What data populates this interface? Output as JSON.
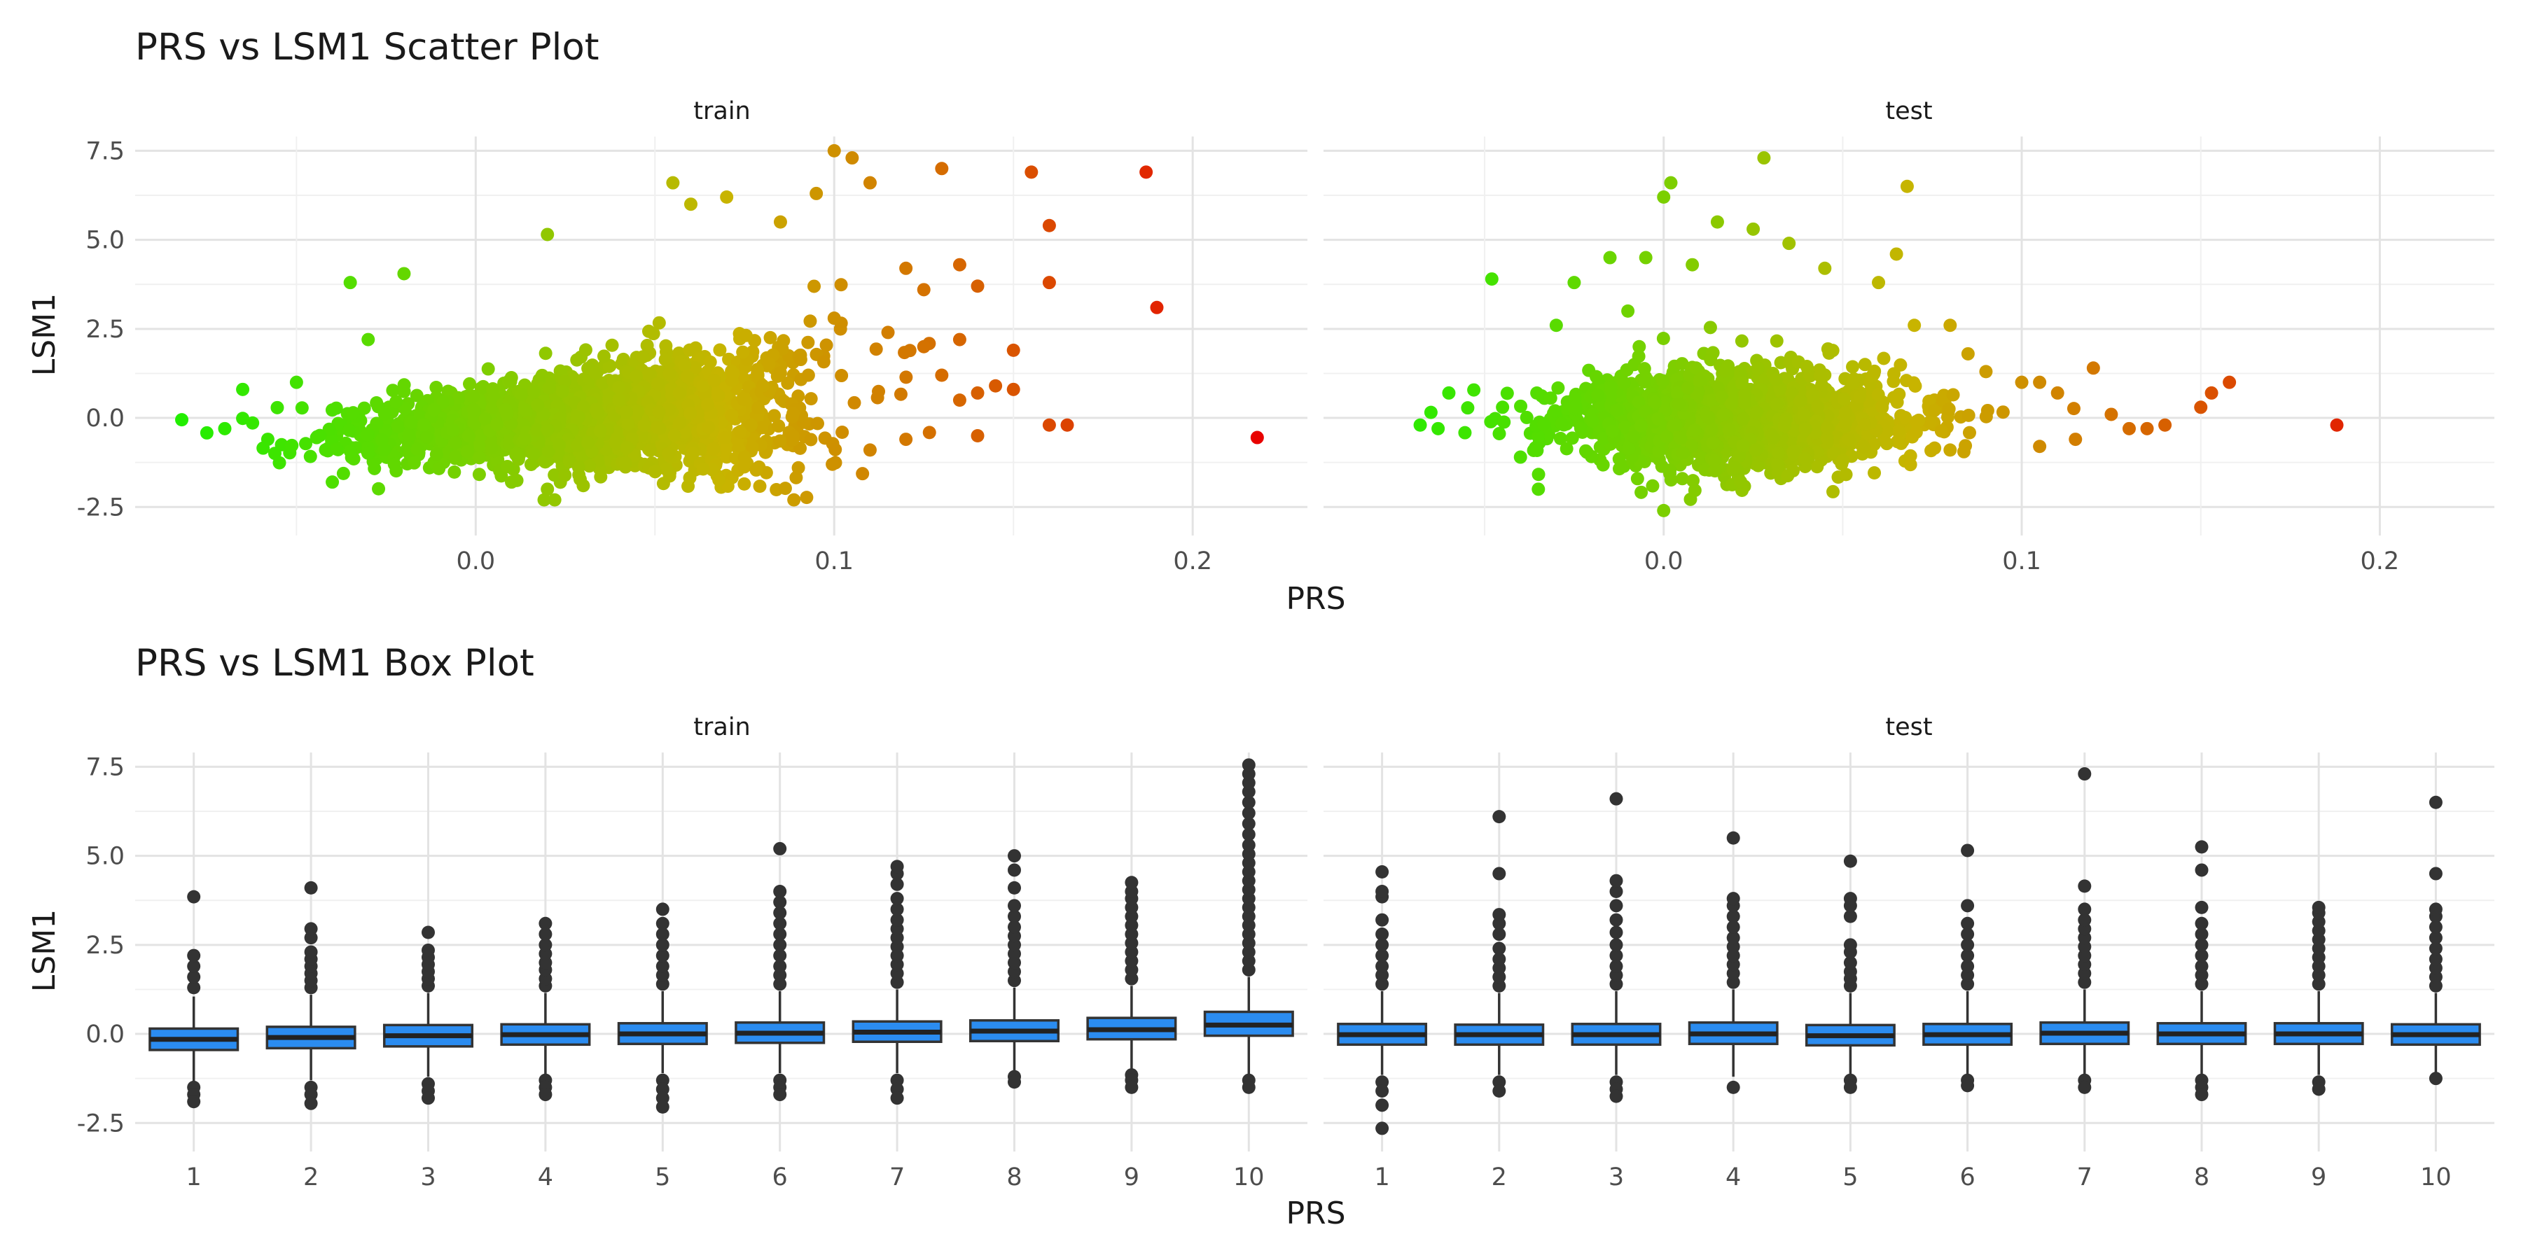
{
  "chart_data": [
    {
      "type": "scatter",
      "title": "PRS vs LSM1 Scatter Plot",
      "xlabel": "PRS",
      "ylabel": "LSM1",
      "xlim": [
        -0.095,
        0.232
      ],
      "ylim": [
        -3.3,
        7.9
      ],
      "x_ticks": [
        "0.0",
        "0.1",
        "0.2"
      ],
      "x_tick_values": [
        0.0,
        0.1,
        0.2
      ],
      "y_ticks": [
        "-2.5",
        "0.0",
        "2.5",
        "5.0",
        "7.5"
      ],
      "y_tick_values": [
        -2.5,
        0.0,
        2.5,
        5.0,
        7.5
      ],
      "grid": true,
      "color_scale": {
        "low": "#22ee00",
        "mid": "#c8b400",
        "high": "#e80000",
        "domain": [
          -0.08,
          0.22
        ]
      },
      "panels": [
        {
          "name": "train",
          "cloud": {
            "x_center": 0.03,
            "x_sd": 0.029,
            "y_sd": 0.85,
            "y_slope": 8.0,
            "count": 2400
          },
          "points": [
            [
              -0.082,
              -0.05
            ],
            [
              -0.075,
              -0.42
            ],
            [
              -0.07,
              -0.3
            ],
            [
              -0.065,
              0.8
            ],
            [
              -0.058,
              -0.6
            ],
            [
              -0.035,
              3.8
            ],
            [
              -0.03,
              2.2
            ],
            [
              -0.02,
              4.05
            ],
            [
              0.02,
              5.15
            ],
            [
              0.055,
              6.6
            ],
            [
              0.06,
              6.0
            ],
            [
              0.07,
              6.2
            ],
            [
              0.085,
              5.5
            ],
            [
              0.095,
              6.3
            ],
            [
              0.1,
              7.5
            ],
            [
              0.105,
              7.3
            ],
            [
              0.11,
              6.6
            ],
            [
              0.13,
              7.0
            ],
            [
              0.135,
              4.3
            ],
            [
              0.14,
              3.7
            ],
            [
              0.15,
              1.9
            ],
            [
              0.155,
              6.9
            ],
            [
              0.16,
              5.4
            ],
            [
              0.16,
              3.8
            ],
            [
              0.16,
              -0.2
            ],
            [
              0.165,
              -0.2
            ],
            [
              0.187,
              6.9
            ],
            [
              0.19,
              3.1
            ],
            [
              0.218,
              -0.55
            ],
            [
              0.12,
              4.2
            ],
            [
              0.125,
              3.6
            ],
            [
              0.145,
              0.9
            ],
            [
              0.14,
              0.7
            ],
            [
              0.15,
              0.8
            ],
            [
              0.13,
              1.2
            ],
            [
              0.135,
              0.5
            ],
            [
              0.14,
              -0.5
            ],
            [
              0.12,
              -0.6
            ],
            [
              0.11,
              -0.9
            ],
            [
              0.09,
              -1.4
            ],
            [
              0.1,
              2.8
            ],
            [
              0.115,
              2.4
            ],
            [
              0.125,
              2.0
            ],
            [
              0.135,
              2.2
            ],
            [
              0.02,
              -2.0
            ],
            [
              0.01,
              -1.8
            ],
            [
              -0.04,
              -1.8
            ],
            [
              0.05,
              -1.5
            ],
            [
              0.03,
              -1.9
            ],
            [
              -0.05,
              1.0
            ]
          ]
        },
        {
          "name": "test",
          "cloud": {
            "x_center": 0.02,
            "x_sd": 0.025,
            "y_sd": 0.78,
            "y_slope": 0.0,
            "count": 1500
          },
          "points": [
            [
              -0.068,
              -0.2
            ],
            [
              -0.063,
              -0.3
            ],
            [
              -0.06,
              0.7
            ],
            [
              -0.048,
              3.9
            ],
            [
              -0.045,
              0.3
            ],
            [
              -0.04,
              -1.1
            ],
            [
              -0.035,
              -2.0
            ],
            [
              -0.03,
              2.6
            ],
            [
              -0.025,
              3.8
            ],
            [
              -0.015,
              4.5
            ],
            [
              -0.01,
              3.0
            ],
            [
              0.0,
              -2.6
            ],
            [
              -0.005,
              4.5
            ],
            [
              0.0,
              6.2
            ],
            [
              0.002,
              6.6
            ],
            [
              0.008,
              4.3
            ],
            [
              0.015,
              5.5
            ],
            [
              0.025,
              5.3
            ],
            [
              0.028,
              7.3
            ],
            [
              0.035,
              4.9
            ],
            [
              0.045,
              4.2
            ],
            [
              0.06,
              3.8
            ],
            [
              0.065,
              4.6
            ],
            [
              0.068,
              6.5
            ],
            [
              0.07,
              2.6
            ],
            [
              0.08,
              2.6
            ],
            [
              0.1,
              1.0
            ],
            [
              0.105,
              1.0
            ],
            [
              0.11,
              0.7
            ],
            [
              0.12,
              1.4
            ],
            [
              0.125,
              0.1
            ],
            [
              0.13,
              -0.3
            ],
            [
              0.135,
              -0.3
            ],
            [
              0.14,
              -0.2
            ],
            [
              0.15,
              0.3
            ],
            [
              0.153,
              0.7
            ],
            [
              0.158,
              1.0
            ],
            [
              0.188,
              -0.2
            ],
            [
              0.115,
              -0.6
            ],
            [
              0.105,
              -0.8
            ],
            [
              0.09,
              1.3
            ],
            [
              0.085,
              1.8
            ],
            [
              0.08,
              -0.9
            ],
            [
              0.05,
              -1.2
            ],
            [
              0.02,
              -1.4
            ]
          ]
        }
      ]
    },
    {
      "type": "box",
      "title": "PRS vs LSM1 Box Plot",
      "xlabel": "PRS",
      "ylabel": "LSM1",
      "categories": [
        "1",
        "2",
        "3",
        "4",
        "5",
        "6",
        "7",
        "8",
        "9",
        "10"
      ],
      "ylim": [
        -3.3,
        7.9
      ],
      "y_ticks": [
        "-2.5",
        "0.0",
        "2.5",
        "5.0",
        "7.5"
      ],
      "y_tick_values": [
        -2.5,
        0.0,
        2.5,
        5.0,
        7.5
      ],
      "box_color": "#2b8cf0",
      "grid": true,
      "panels": [
        {
          "name": "train",
          "boxes": [
            {
              "q1": -0.45,
              "median": -0.15,
              "q3": 0.15,
              "whisker_low": -1.35,
              "whisker_high": 1.05,
              "outliers": [
                -1.5,
                -1.7,
                -1.9,
                1.3,
                1.6,
                1.9,
                2.2,
                3.85
              ]
            },
            {
              "q1": -0.4,
              "median": -0.1,
              "q3": 0.2,
              "whisker_low": -1.3,
              "whisker_high": 1.1,
              "outliers": [
                -1.5,
                -1.7,
                -1.95,
                1.3,
                1.5,
                1.7,
                1.9,
                2.1,
                2.3,
                2.7,
                2.95,
                4.1
              ]
            },
            {
              "q1": -0.35,
              "median": -0.05,
              "q3": 0.25,
              "whisker_low": -1.2,
              "whisker_high": 1.15,
              "outliers": [
                -1.4,
                -1.6,
                -1.8,
                1.35,
                1.55,
                1.75,
                1.95,
                2.15,
                2.35,
                2.85
              ]
            },
            {
              "q1": -0.3,
              "median": -0.02,
              "q3": 0.27,
              "whisker_low": -1.15,
              "whisker_high": 1.15,
              "outliers": [
                -1.3,
                -1.5,
                -1.7,
                1.35,
                1.55,
                1.8,
                2.0,
                2.25,
                2.5,
                2.8,
                3.1
              ]
            },
            {
              "q1": -0.28,
              "median": 0.0,
              "q3": 0.3,
              "whisker_low": -1.1,
              "whisker_high": 1.2,
              "outliers": [
                -1.3,
                -1.55,
                -1.8,
                -2.05,
                1.4,
                1.65,
                1.9,
                2.2,
                2.5,
                2.8,
                3.1,
                3.5
              ]
            },
            {
              "q1": -0.25,
              "median": 0.02,
              "q3": 0.32,
              "whisker_low": -1.1,
              "whisker_high": 1.2,
              "outliers": [
                -1.3,
                -1.5,
                -1.7,
                1.4,
                1.65,
                1.9,
                2.2,
                2.5,
                2.8,
                3.1,
                3.4,
                3.7,
                4.0,
                5.2
              ]
            },
            {
              "q1": -0.22,
              "median": 0.05,
              "q3": 0.35,
              "whisker_low": -1.1,
              "whisker_high": 1.25,
              "outliers": [
                -1.3,
                -1.55,
                -1.8,
                1.45,
                1.7,
                1.95,
                2.2,
                2.45,
                2.7,
                2.95,
                3.2,
                3.5,
                3.8,
                4.2,
                4.5,
                4.7
              ]
            },
            {
              "q1": -0.2,
              "median": 0.08,
              "q3": 0.38,
              "whisker_low": -1.05,
              "whisker_high": 1.3,
              "outliers": [
                -1.2,
                -1.35,
                1.5,
                1.75,
                2.0,
                2.25,
                2.5,
                2.75,
                3.0,
                3.3,
                3.6,
                4.1,
                4.6,
                5.0
              ]
            },
            {
              "q1": -0.15,
              "median": 0.12,
              "q3": 0.45,
              "whisker_low": -1.0,
              "whisker_high": 1.35,
              "outliers": [
                -1.15,
                -1.3,
                -1.5,
                1.55,
                1.8,
                2.05,
                2.3,
                2.55,
                2.8,
                3.05,
                3.3,
                3.55,
                3.8,
                4.0,
                4.25
              ]
            },
            {
              "q1": -0.05,
              "median": 0.25,
              "q3": 0.62,
              "whisker_low": -1.2,
              "whisker_high": 1.6,
              "outliers": [
                -1.3,
                -1.5,
                1.8,
                2.05,
                2.3,
                2.55,
                2.8,
                3.05,
                3.3,
                3.55,
                3.8,
                4.05,
                4.3,
                4.55,
                4.8,
                5.05,
                5.3,
                5.6,
                5.9,
                6.2,
                6.5,
                6.8,
                7.05,
                7.3,
                7.55
              ]
            }
          ]
        },
        {
          "name": "test",
          "boxes": [
            {
              "q1": -0.3,
              "median": -0.02,
              "q3": 0.28,
              "whisker_low": -1.15,
              "whisker_high": 1.2,
              "outliers": [
                -1.35,
                -1.6,
                -2.0,
                -2.65,
                1.4,
                1.65,
                1.9,
                2.2,
                2.5,
                2.8,
                3.2,
                3.85,
                4.0,
                4.55
              ]
            },
            {
              "q1": -0.3,
              "median": -0.02,
              "q3": 0.26,
              "whisker_low": -1.15,
              "whisker_high": 1.15,
              "outliers": [
                -1.35,
                -1.6,
                1.35,
                1.6,
                1.85,
                2.1,
                2.4,
                2.8,
                3.1,
                3.35,
                4.5,
                6.1
              ]
            },
            {
              "q1": -0.3,
              "median": -0.02,
              "q3": 0.28,
              "whisker_low": -1.15,
              "whisker_high": 1.2,
              "outliers": [
                -1.35,
                -1.55,
                -1.75,
                1.4,
                1.65,
                1.9,
                2.2,
                2.5,
                2.85,
                3.2,
                3.6,
                4.0,
                4.3,
                6.6
              ]
            },
            {
              "q1": -0.28,
              "median": 0.0,
              "q3": 0.32,
              "whisker_low": -1.2,
              "whisker_high": 1.25,
              "outliers": [
                -1.5,
                1.45,
                1.7,
                1.95,
                2.2,
                2.45,
                2.7,
                3.0,
                3.3,
                3.6,
                3.8,
                5.5
              ]
            },
            {
              "q1": -0.32,
              "median": -0.05,
              "q3": 0.25,
              "whisker_low": -1.15,
              "whisker_high": 1.15,
              "outliers": [
                -1.3,
                -1.5,
                1.35,
                1.55,
                1.75,
                2.0,
                2.3,
                2.5,
                3.3,
                3.6,
                3.8,
                4.85
              ]
            },
            {
              "q1": -0.3,
              "median": -0.02,
              "q3": 0.28,
              "whisker_low": -1.15,
              "whisker_high": 1.2,
              "outliers": [
                -1.3,
                -1.45,
                1.4,
                1.65,
                1.9,
                2.2,
                2.5,
                2.8,
                3.1,
                3.6,
                5.15
              ]
            },
            {
              "q1": -0.28,
              "median": 0.02,
              "q3": 0.32,
              "whisker_low": -1.15,
              "whisker_high": 1.25,
              "outliers": [
                -1.3,
                -1.5,
                1.45,
                1.7,
                1.95,
                2.2,
                2.45,
                2.7,
                2.95,
                3.2,
                3.5,
                4.15,
                7.3
              ]
            },
            {
              "q1": -0.28,
              "median": 0.0,
              "q3": 0.3,
              "whisker_low": -1.15,
              "whisker_high": 1.2,
              "outliers": [
                -1.3,
                -1.5,
                -1.7,
                1.4,
                1.65,
                1.9,
                2.2,
                2.5,
                2.8,
                3.1,
                3.55,
                4.6,
                5.25
              ]
            },
            {
              "q1": -0.28,
              "median": 0.0,
              "q3": 0.3,
              "whisker_low": -1.15,
              "whisker_high": 1.2,
              "outliers": [
                -1.35,
                -1.55,
                1.4,
                1.65,
                1.9,
                2.15,
                2.4,
                2.65,
                2.9,
                3.15,
                3.4,
                3.55
              ]
            },
            {
              "q1": -0.3,
              "median": -0.02,
              "q3": 0.27,
              "whisker_low": -1.1,
              "whisker_high": 1.15,
              "outliers": [
                -1.25,
                1.35,
                1.6,
                1.85,
                2.1,
                2.4,
                2.7,
                3.0,
                3.3,
                3.5,
                4.5,
                6.5
              ]
            }
          ]
        }
      ]
    }
  ]
}
